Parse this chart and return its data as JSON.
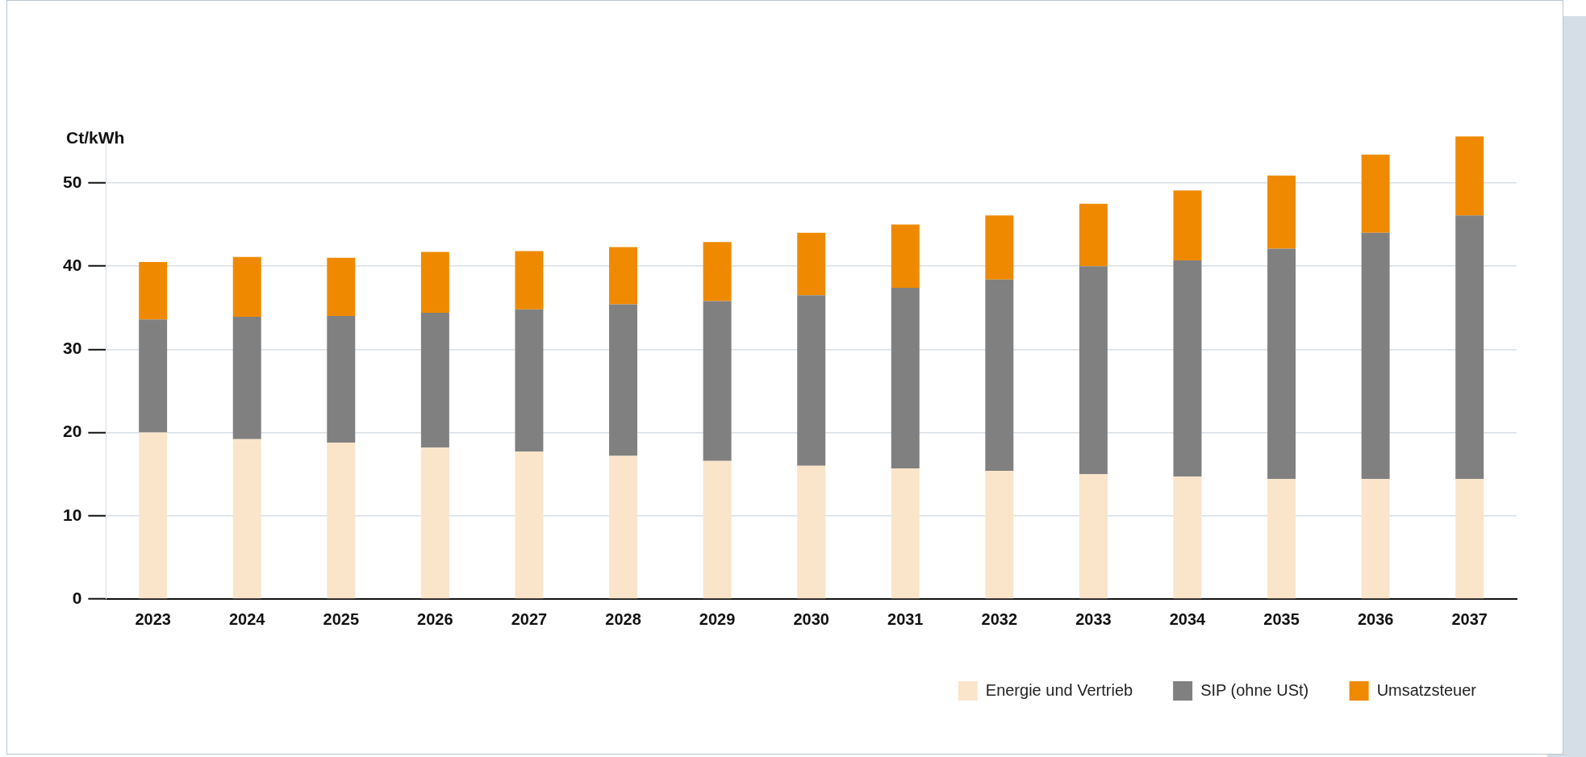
{
  "chart_data": {
    "type": "bar",
    "stacked": true,
    "ylabel": "Ct/kWh",
    "categories": [
      "2023",
      "2024",
      "2025",
      "2026",
      "2027",
      "2028",
      "2029",
      "2030",
      "2031",
      "2032",
      "2033",
      "2034",
      "2035",
      "2036",
      "2037"
    ],
    "series": [
      {
        "name": "Energie und Vertrieb",
        "color": "#fae5ca",
        "values": [
          20.0,
          19.2,
          18.8,
          18.2,
          17.7,
          17.2,
          16.6,
          16.0,
          15.7,
          15.4,
          15.0,
          14.7,
          14.4,
          14.4,
          14.4
        ]
      },
      {
        "name": "SIP (ohne USt)",
        "color": "#808080",
        "values": [
          13.6,
          14.7,
          15.2,
          16.2,
          17.1,
          18.2,
          19.2,
          20.5,
          21.7,
          23.0,
          25.0,
          26.0,
          27.7,
          29.6,
          31.7
        ]
      },
      {
        "name": "Umsatzsteuer",
        "color": "#ef8a00",
        "values": [
          6.9,
          7.2,
          7.0,
          7.3,
          7.0,
          6.9,
          7.1,
          7.5,
          7.6,
          7.7,
          7.5,
          8.4,
          8.8,
          9.4,
          9.5
        ]
      }
    ],
    "ylim": [
      0,
      56
    ],
    "yticks": [
      0,
      10,
      20,
      30,
      40,
      50
    ],
    "grid": "y",
    "legend": "bottom right"
  }
}
